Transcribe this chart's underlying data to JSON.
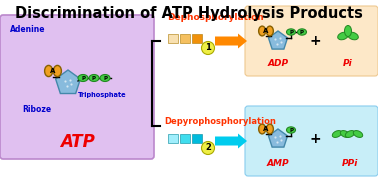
{
  "title": "Discrimination of ATP Hydrolysis Products",
  "title_fontsize": 10.5,
  "title_color": "black",
  "bg_color": "white",
  "atp_box_color": "#E0C0F0",
  "atp_box_ec": "#BB88CC",
  "adp_box_color": "#FDE8C8",
  "adp_box_ec": "#EEC890",
  "amp_box_color": "#C8EEF8",
  "amp_box_ec": "#88CCEE",
  "adenine_color": "#F0A020",
  "adenine_ec": "#886000",
  "ribose_color": "#88BBDD",
  "ribose_ec": "#4488AA",
  "phosphate_color": "#44CC44",
  "phosphate_ec": "#228822",
  "atp_label": "ATP",
  "atp_label_color": "#EE0000",
  "adenine_label": "Adenine",
  "adenine_label_color": "#0000CC",
  "ribose_label": "Riboze",
  "ribose_label_color": "#0000CC",
  "triphosphate_label": "Triphosphate",
  "triphosphate_label_color": "#0000CC",
  "path1_label": "Dephosphorylation",
  "path1_color": "#FF3300",
  "path2_label": "Depyrophosphorylation",
  "path2_color": "#FF3300",
  "arrow1_color": "#FF8800",
  "arrow2_color": "#00CCEE",
  "adp_label": "ADP",
  "adp_label_color": "#EE0000",
  "amp_label": "AMP",
  "amp_label_color": "#EE0000",
  "pi_label": "Pi",
  "pi_label_color": "#EE0000",
  "ppi_label": "PPi",
  "ppi_label_color": "#EE0000",
  "dot1_colors": [
    "#F8E0B0",
    "#F5C060",
    "#F0900A"
  ],
  "dot2_colors": [
    "#A0EEFC",
    "#40DDEE",
    "#00BBDD"
  ]
}
